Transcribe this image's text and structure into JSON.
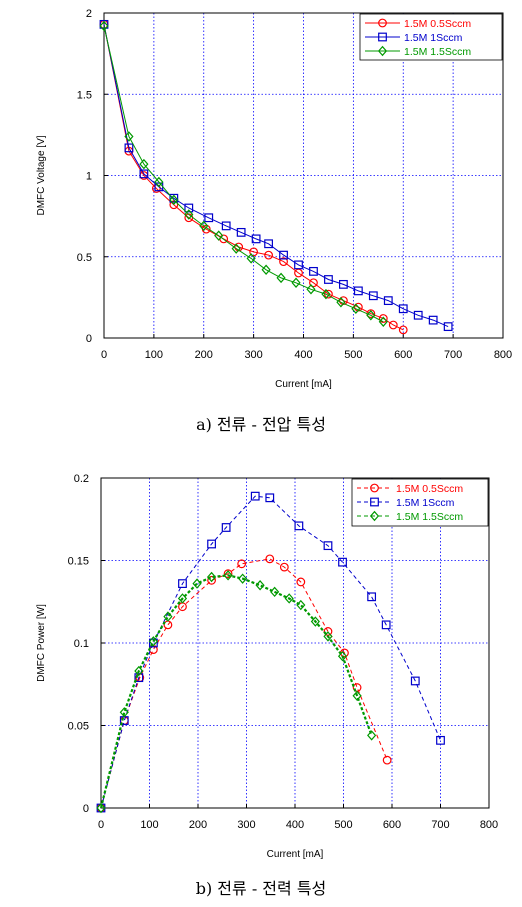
{
  "chart_data": [
    {
      "type": "line",
      "xlabel": "Current [mA]",
      "ylabel": "DMFC Voltage [V]",
      "xlim": [
        0,
        800
      ],
      "ylim": [
        0,
        2
      ],
      "xticks": [
        "0",
        "100",
        "200",
        "300",
        "400",
        "500",
        "600",
        "700",
        "800"
      ],
      "yticks": [
        "0",
        "0.5",
        "1",
        "1.5",
        "2"
      ],
      "grid": true,
      "legend_position": "top-right",
      "caption": "a) 전류 - 전압 특성",
      "series": [
        {
          "name": "1.5M 0.5Sccm",
          "color": "#ff0000",
          "marker": "circle",
          "line": "solid",
          "x": [
            0,
            50,
            80,
            105,
            140,
            170,
            205,
            240,
            270,
            300,
            330,
            360,
            390,
            420,
            450,
            480,
            510,
            535,
            560,
            580,
            600
          ],
          "y": [
            1.93,
            1.15,
            1.0,
            0.92,
            0.82,
            0.74,
            0.67,
            0.61,
            0.56,
            0.53,
            0.51,
            0.47,
            0.4,
            0.34,
            0.27,
            0.23,
            0.19,
            0.15,
            0.12,
            0.08,
            0.05
          ]
        },
        {
          "name": "1.5M 1Sccm",
          "color": "#0000cc",
          "marker": "square",
          "line": "solid",
          "x": [
            0,
            50,
            80,
            110,
            140,
            170,
            210,
            245,
            275,
            305,
            330,
            360,
            390,
            420,
            450,
            480,
            510,
            540,
            570,
            600,
            630,
            660,
            690
          ],
          "y": [
            1.93,
            1.17,
            1.01,
            0.93,
            0.86,
            0.8,
            0.74,
            0.69,
            0.65,
            0.61,
            0.58,
            0.51,
            0.45,
            0.41,
            0.36,
            0.33,
            0.29,
            0.26,
            0.23,
            0.18,
            0.14,
            0.11,
            0.07
          ]
        },
        {
          "name": "1.5M 1.5Sccm",
          "color": "#009900",
          "marker": "diamond",
          "line": "solid",
          "x": [
            0,
            50,
            80,
            110,
            140,
            170,
            200,
            230,
            265,
            295,
            325,
            355,
            385,
            415,
            445,
            475,
            505,
            535,
            560
          ],
          "y": [
            1.92,
            1.24,
            1.07,
            0.96,
            0.85,
            0.76,
            0.69,
            0.63,
            0.55,
            0.49,
            0.42,
            0.37,
            0.34,
            0.3,
            0.27,
            0.22,
            0.18,
            0.14,
            0.1
          ]
        }
      ]
    },
    {
      "type": "line",
      "xlabel": "Current [mA]",
      "ylabel": "DMFC Power [W]",
      "xlim": [
        0,
        800
      ],
      "ylim": [
        0,
        0.2
      ],
      "xticks": [
        "0",
        "100",
        "200",
        "300",
        "400",
        "500",
        "600",
        "700",
        "800"
      ],
      "yticks": [
        "0",
        "0.05",
        "0.1",
        "0.15",
        "0.2"
      ],
      "grid": true,
      "legend_position": "top-right",
      "caption": "b) 전류 - 전력 특성",
      "series": [
        {
          "name": "1.5M 0.5Sccm",
          "color": "#ff0000",
          "marker": "circle",
          "line": "dashed",
          "x": [
            0,
            48,
            80,
            108,
            138,
            168,
            228,
            262,
            290,
            348,
            378,
            412,
            468,
            502,
            528,
            590
          ],
          "y": [
            0.0,
            0.053,
            0.079,
            0.096,
            0.111,
            0.122,
            0.138,
            0.142,
            0.148,
            0.151,
            0.146,
            0.137,
            0.107,
            0.094,
            0.073,
            0.029
          ]
        },
        {
          "name": "1.5M 1Sccm",
          "color": "#0000cc",
          "marker": "square",
          "line": "dashed",
          "x": [
            0,
            48,
            78,
            108,
            168,
            228,
            258,
            318,
            348,
            408,
            468,
            498,
            558,
            588,
            648,
            700
          ],
          "y": [
            0.0,
            0.053,
            0.079,
            0.1,
            0.136,
            0.16,
            0.17,
            0.189,
            0.188,
            0.171,
            0.159,
            0.149,
            0.128,
            0.111,
            0.077,
            0.041
          ]
        },
        {
          "name": "1.5M 1.5Sccm",
          "color": "#009900",
          "marker": "diamond",
          "line": "dashed",
          "x": [
            0,
            48,
            78,
            108,
            138,
            168,
            198,
            228,
            262,
            292,
            328,
            358,
            388,
            412,
            442,
            468,
            498,
            528,
            558
          ],
          "y": [
            0.0,
            0.058,
            0.083,
            0.101,
            0.116,
            0.127,
            0.136,
            0.14,
            0.141,
            0.139,
            0.135,
            0.131,
            0.127,
            0.123,
            0.113,
            0.104,
            0.092,
            0.068,
            0.044
          ]
        }
      ]
    }
  ]
}
